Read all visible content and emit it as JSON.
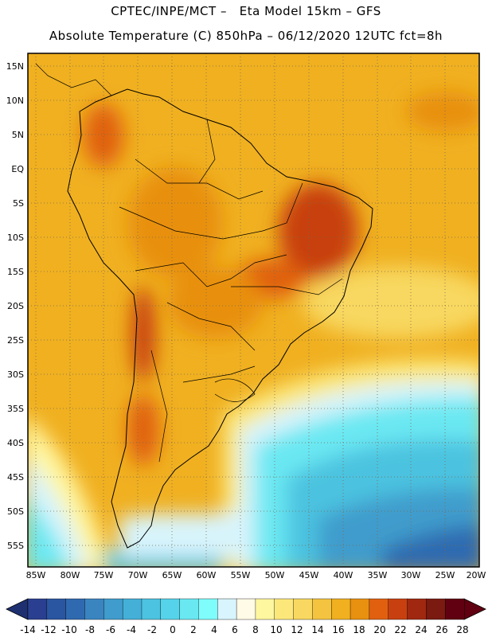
{
  "header": {
    "line1": "CPTEC/INPE/MCT –   Eta Model 15km – GFS",
    "line2": "Absolute Temperature (C) 850hPa – 06/12/2020 12UTC fct=8h"
  },
  "map": {
    "lat_range": [
      -58,
      17
    ],
    "lon_range": [
      -86,
      -20
    ],
    "lat_ticks": [
      "15N",
      "10N",
      "5N",
      "EQ",
      "5S",
      "10S",
      "15S",
      "20S",
      "25S",
      "30S",
      "35S",
      "40S",
      "45S",
      "50S",
      "55S"
    ],
    "lon_ticks": [
      "85W",
      "80W",
      "75W",
      "70W",
      "65W",
      "60W",
      "55W",
      "50W",
      "45W",
      "40W",
      "35W",
      "30W",
      "25W",
      "20W"
    ]
  },
  "colorbar": {
    "labels": [
      "-14",
      "-12",
      "-10",
      "-8",
      "-6",
      "-4",
      "-2",
      "0",
      "2",
      "4",
      "6",
      "8",
      "10",
      "12",
      "14",
      "16",
      "18",
      "20",
      "22",
      "24",
      "26",
      "28"
    ],
    "colors": [
      "#2a3f8f",
      "#2a55a0",
      "#2f6ab0",
      "#3a85c0",
      "#3f9ccc",
      "#44b0d8",
      "#4cc3e0",
      "#55d3ea",
      "#6ae8f2",
      "#7ffcfc",
      "#d8f4fc",
      "#fffbe6",
      "#fff6a0",
      "#fce87a",
      "#f8d860",
      "#f4c440",
      "#f0b020",
      "#e89010",
      "#e06010",
      "#c84010",
      "#a02810",
      "#7a1a10",
      "#600010"
    ],
    "left_arrow_color": "#1e3070",
    "right_arrow_color": "#600010"
  }
}
